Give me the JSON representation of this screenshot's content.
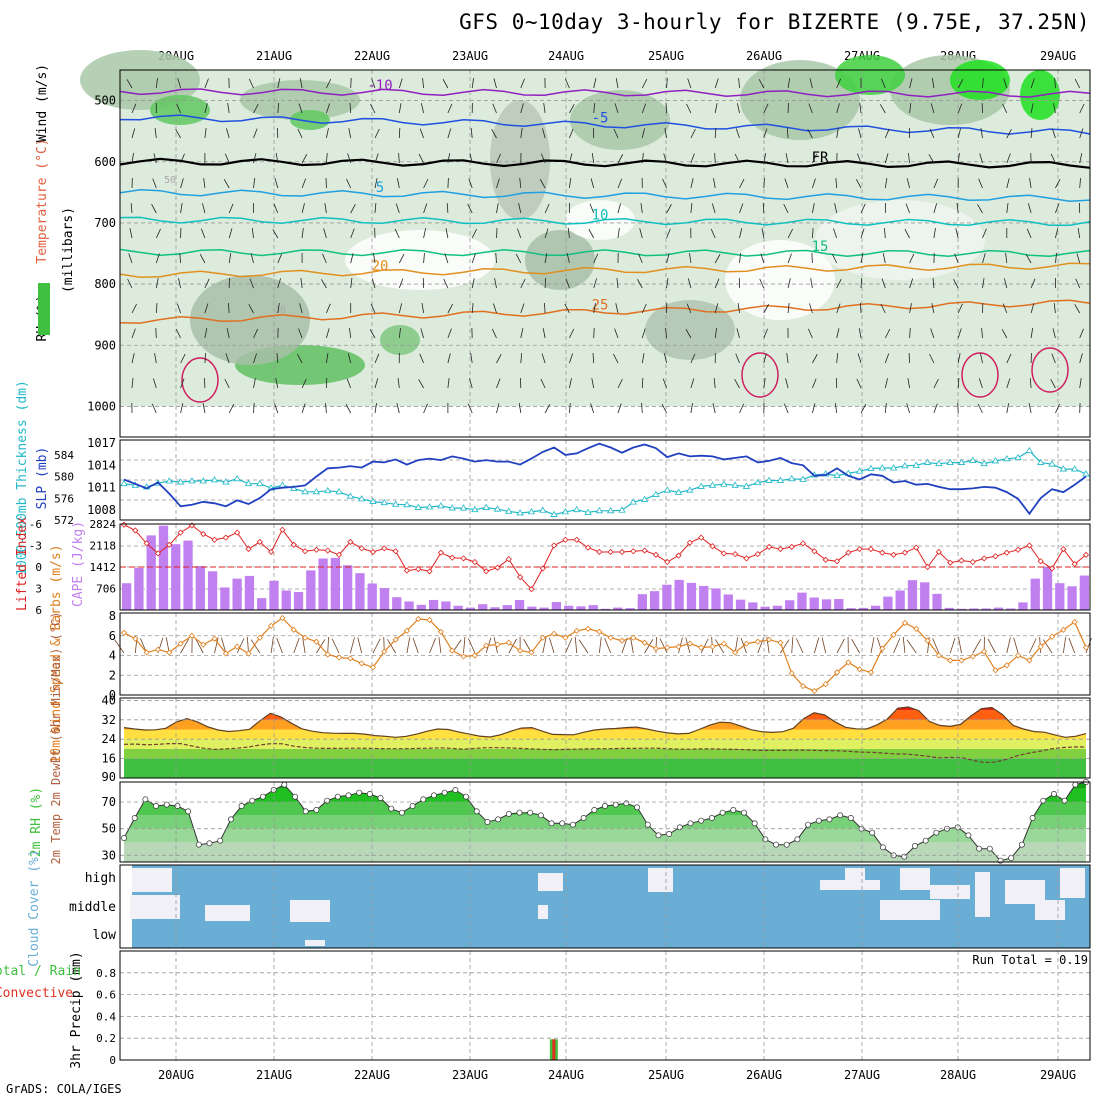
{
  "title": "GFS 0~10day 3-hourly for BIZERTE (9.75E, 37.25N)",
  "footer": "GrADS: COLA/IGES",
  "run_total": "Run Total = 0.19",
  "dates": [
    "20AUG",
    "21AUG",
    "22AUG",
    "23AUG",
    "24AUG",
    "25AUG",
    "26AUG",
    "27AUG",
    "28AUG",
    "29AUG"
  ],
  "colors": {
    "temp": "#e06040",
    "rh": "#40c040",
    "cape": "#c080f0",
    "lifted": "#e02020",
    "wind": "#e08020",
    "thickness": "#20b8c8",
    "slp": "#2040c0",
    "cloud": "#6aaed6",
    "dewpt": "#b06040",
    "precip_rain": "#40c040",
    "precip_conv": "#e03020"
  },
  "chart_data": [
    {
      "type": "contour",
      "panel": "upper-air",
      "ylabel": "(millibars)",
      "side_labels": [
        "RH (%)",
        "Temperature (°C)",
        "Wind (m/s)"
      ],
      "yticks": [
        500,
        600,
        700,
        800,
        900,
        1000
      ],
      "ylim": [
        1050,
        450
      ],
      "isotherms": [
        {
          "label": "-10",
          "level_start": 485,
          "level_end": 490
        },
        {
          "label": "-5",
          "level_start": 527,
          "level_end": 552
        },
        {
          "label": "FR",
          "level_start": 600,
          "level_end": 605
        },
        {
          "label": "5",
          "level_start": 650,
          "level_end": 660
        },
        {
          "label": "10",
          "level_start": 695,
          "level_end": 700
        },
        {
          "label": "15",
          "level_start": 748,
          "level_end": 750
        },
        {
          "label": "20",
          "level_start": 785,
          "level_end": 770
        },
        {
          "label": "25",
          "level_start": 860,
          "level_end": 830
        }
      ],
      "rh_labels": [
        "50",
        "30"
      ]
    },
    {
      "type": "line",
      "panel": "thickness-slp",
      "ylabel_left": "1000-500mb Thickness (dm)",
      "ylabel_right": "SLP (mb)",
      "thickness_ticks": [
        572,
        576,
        580,
        584
      ],
      "slp_ticks": [
        1008,
        1011,
        1014,
        1017
      ],
      "series": [
        {
          "name": "SLP",
          "values": [
            1012.1,
            1011.5,
            1010.9,
            1011.7,
            1010.2,
            1008.5,
            1008.7,
            1009.1,
            1008.9,
            1008.5,
            1009.3,
            1008.8,
            1009.6,
            1010.8,
            1011.0,
            1011.1,
            1011.3,
            1012.5,
            1013.6,
            1013.7,
            1013.9,
            1013.7,
            1014.5,
            1014.4,
            1014.8,
            1014.1,
            1014.7,
            1014.9,
            1014.7,
            1015.2,
            1014.9,
            1014.5,
            1014.7,
            1014.5,
            1014.5,
            1014.1,
            1014.9,
            1015.8,
            1016.4,
            1015.4,
            1015.6,
            1016.3,
            1016.9,
            1016.4,
            1015.7,
            1016.4,
            1016.8,
            1016.3,
            1015.1,
            1015.6,
            1015.2,
            1015.3,
            1015.2,
            1014.8,
            1015.0,
            1015.2,
            1014.4,
            1014.6,
            1015.0,
            1014.3,
            1014.0,
            1012.6,
            1012.7,
            1013.6,
            1012.6,
            1012.1,
            1012.8,
            1012.6,
            1011.7,
            1011.9,
            1011.4,
            1011.5,
            1011.1,
            1010.8,
            1010.8,
            1010.9,
            1011.1,
            1011.0,
            1010.4,
            1009.5,
            1007.5,
            1009.6,
            1010.8,
            1010.4,
            1011.4,
            1012.5
          ]
        },
        {
          "name": "Thickness",
          "values": [
            578.7,
            578.4,
            578.1,
            578.8,
            579.2,
            579.0,
            579.2,
            579.2,
            579.4,
            579.0,
            579.6,
            578.7,
            578.7,
            577.9,
            578.4,
            577.8,
            577.2,
            577.2,
            577.4,
            577.2,
            576.4,
            575.9,
            575.4,
            575.2,
            574.9,
            574.8,
            574.3,
            574.4,
            574.6,
            574.2,
            574.2,
            573.9,
            574.3,
            574.0,
            573.6,
            573.3,
            573.5,
            573.8,
            573.0,
            573.5,
            573.9,
            573.4,
            573.7,
            573.7,
            573.8,
            575.3,
            575.8,
            576.7,
            577.5,
            577.1,
            577.5,
            578.2,
            578.4,
            578.6,
            578.4,
            578.2,
            578.9,
            579.3,
            579.3,
            579.6,
            579.5,
            580.3,
            580.5,
            580.2,
            580.6,
            581.0,
            581.5,
            581.6,
            581.6,
            582.0,
            582.1,
            582.6,
            582.4,
            582.6,
            582.6,
            583.0,
            582.4,
            582.9,
            583.3,
            583.5,
            584.8,
            582.6,
            582.3,
            581.4,
            581.4,
            580.5
          ]
        }
      ]
    },
    {
      "type": "bar+line",
      "panel": "cape-lifted",
      "ylabel_left": "Lifted Index",
      "ylabel_right": "CAPE (J/kg)",
      "cape_ticks": [
        706,
        1412,
        2118,
        2824
      ],
      "li_ticks": [
        -6,
        -3,
        0,
        3,
        6
      ],
      "series": [
        {
          "name": "CAPE",
          "values": [
            880,
            1380,
            2450,
            2770,
            2160,
            2280,
            1440,
            1270,
            740,
            1030,
            1120,
            390,
            960,
            640,
            590,
            1300,
            1690,
            1710,
            1470,
            1210,
            870,
            720,
            420,
            280,
            170,
            330,
            280,
            140,
            80,
            190,
            90,
            160,
            330,
            110,
            80,
            260,
            140,
            120,
            160,
            40,
            80,
            60,
            520,
            620,
            830,
            990,
            890,
            790,
            710,
            510,
            340,
            250,
            110,
            140,
            320,
            570,
            410,
            350,
            360,
            60,
            70,
            140,
            440,
            640,
            980,
            910,
            530,
            70,
            40,
            50,
            50,
            80,
            50,
            250,
            1030,
            1410,
            880,
            780,
            1130
          ]
        },
        {
          "name": "Lifted Index",
          "values": [
            -5.9,
            -5.1,
            -3.3,
            -1.9,
            -3.1,
            -4.8,
            -5.8,
            -4.6,
            -3.8,
            -4.1,
            -4.8,
            -2.5,
            -3.5,
            -2.1,
            -5.2,
            -3.1,
            -2.2,
            -2.4,
            -2.3,
            -1.7,
            -3.5,
            -2.6,
            -2.1,
            -2.6,
            -2.2,
            0.5,
            0.3,
            0.6,
            -2.0,
            -1.3,
            -1.2,
            -0.7,
            0.6,
            0.1,
            -1.1,
            1.4,
            3.1,
            0.2,
            -3.0,
            -3.8,
            -3.8,
            -2.7,
            -2.1,
            -2.1,
            -2.1,
            -2.2,
            -2.3,
            -1.7,
            -0.7,
            -1.6,
            -3.4,
            -4.1,
            -2.9,
            -1.9,
            -1.8,
            -1.2,
            -1.8,
            -2.8,
            -2.5,
            -2.8,
            -3.3,
            -2.2,
            -1.0,
            -0.8,
            -2.0,
            -2.5,
            -2.5,
            -2.0,
            -1.7,
            -2.0,
            -2.7,
            0.0,
            -2.1,
            -0.6,
            -0.9,
            -0.7,
            -1.2,
            -1.5,
            -2.0,
            -2.4,
            -3.0,
            -0.8,
            0.2,
            -2.5,
            -0.4,
            -1.7
          ]
        }
      ]
    },
    {
      "type": "line",
      "panel": "wind-10m",
      "ylabel": "10m Wind Speed & Barbs (m/s)",
      "yticks": [
        0,
        2,
        4,
        6,
        8
      ],
      "ylim": [
        0,
        8
      ],
      "series": [
        {
          "name": "10m Wind Speed",
          "values": [
            6.3,
            5.7,
            4.3,
            4.6,
            4.3,
            5.2,
            6.0,
            5.1,
            5.7,
            4.2,
            4.9,
            4.2,
            5.8,
            7.0,
            7.8,
            6.6,
            5.8,
            5.4,
            4.1,
            3.8,
            3.7,
            3.2,
            2.8,
            4.4,
            5.6,
            6.5,
            7.7,
            7.6,
            6.4,
            4.5,
            3.9,
            4.0,
            5.0,
            5.1,
            5.3,
            4.5,
            4.3,
            5.8,
            6.2,
            5.8,
            6.5,
            6.7,
            6.4,
            5.8,
            5.5,
            5.8,
            5.3,
            4.7,
            4.8,
            4.9,
            5.2,
            4.8,
            4.9,
            5.2,
            4.3,
            5.2,
            5.4,
            5.6,
            5.3,
            2.2,
            0.9,
            0.4,
            1.1,
            2.3,
            3.3,
            2.6,
            2.3,
            4.7,
            6.1,
            7.3,
            6.7,
            5.5,
            4.0,
            3.5,
            3.5,
            3.9,
            4.4,
            2.5,
            3.0,
            4.0,
            3.5,
            4.9,
            5.9,
            6.6,
            7.4,
            4.8
          ]
        }
      ]
    },
    {
      "type": "area+line",
      "panel": "temp-dewpt",
      "ylabel": "2m Temp 2m DewPt (6hr Min/Max) (°C)",
      "yticks": [
        16,
        24,
        32,
        40
      ],
      "ylim": [
        8,
        41
      ],
      "bottom_label": "90",
      "series": [
        {
          "name": "2m Temp",
          "values": [
            28.8,
            28.2,
            27.8,
            27.9,
            28.5,
            31.1,
            32.5,
            31.2,
            29.1,
            27.8,
            27.2,
            27.5,
            28.1,
            31.6,
            34.7,
            33.2,
            30.6,
            28.3,
            27.3,
            26.7,
            26.5,
            26.4,
            26.4,
            26.1,
            25.5,
            25.2,
            24.8,
            25.2,
            26.1,
            27.3,
            28.2,
            28.0,
            27.0,
            26.1,
            25.3,
            24.9,
            25.8,
            27.3,
            28.6,
            28.8,
            27.3,
            26.0,
            25.9,
            25.8,
            26.9,
            27.8,
            28.2,
            28.4,
            28.8,
            29.0,
            28.2,
            27.3,
            26.6,
            26.2,
            26.4,
            28.0,
            29.8,
            31.0,
            30.8,
            29.4,
            27.9,
            27.1,
            26.8,
            27.1,
            28.5,
            32.5,
            34.9,
            34.0,
            31.2,
            28.9,
            28.3,
            28.2,
            29.9,
            32.3,
            36.8,
            37.3,
            35.8,
            31.4,
            29.7,
            29.3,
            30.1,
            33.6,
            36.6,
            37.1,
            34.2,
            29.8,
            28.2,
            27.2,
            26.9,
            25.8,
            24.8,
            25.2,
            26.3
          ]
        },
        {
          "name": "2m DewPt",
          "values": [
            21.9,
            22.0,
            21.7,
            21.9,
            22.2,
            22.2,
            21.2,
            20.3,
            19.8,
            20.0,
            20.3,
            20.8,
            21.6,
            22.2,
            22.1,
            21.1,
            20.6,
            20.3,
            20.2,
            20.2,
            20.3,
            20.3,
            20.2,
            20.1,
            20.1,
            20.1,
            20.2,
            20.3,
            20.4,
            20.2,
            19.9,
            20.2,
            20.5,
            20.5,
            20.4,
            20.2,
            20.0,
            19.8,
            19.7,
            19.8,
            19.9,
            20.0,
            20.1,
            20.1,
            20.2,
            20.2,
            20.3,
            20.3,
            20.1,
            19.9,
            19.9,
            20.0,
            20.0,
            19.9,
            19.8,
            19.7,
            19.4,
            19.4,
            19.4,
            19.5,
            19.5,
            19.4,
            19.3,
            19.2,
            19.0,
            18.7,
            18.6,
            18.3,
            18.0,
            17.9,
            17.5,
            17.0,
            16.3,
            16.5,
            16.4,
            15.3,
            14.4,
            14.6,
            15.7,
            17.3,
            18.3,
            19.1,
            20.1,
            20.6,
            20.8,
            20.8
          ]
        }
      ]
    },
    {
      "type": "area",
      "panel": "rh-2m",
      "ylabel": "2m RH (%)",
      "yticks": [
        30,
        50,
        70
      ],
      "ylim": [
        25,
        85
      ],
      "series": [
        {
          "name": "2m RH",
          "values": [
            43,
            58,
            72,
            67,
            68,
            67,
            63,
            38,
            39,
            41,
            57,
            67,
            71,
            74,
            79,
            83,
            74,
            63,
            64,
            71,
            74,
            75,
            77,
            76,
            73,
            65,
            62,
            67,
            72,
            75,
            77,
            79,
            74,
            63,
            55,
            57,
            61,
            62,
            62,
            60,
            54,
            54,
            53,
            58,
            64,
            67,
            68,
            69,
            66,
            53,
            45,
            46,
            51,
            54,
            56,
            58,
            62,
            64,
            62,
            54,
            42,
            38,
            38,
            42,
            53,
            56,
            57,
            60,
            58,
            50,
            47,
            36,
            30,
            29,
            37,
            41,
            47,
            50,
            51,
            45,
            35,
            35,
            26,
            28,
            38,
            58,
            71,
            76,
            71,
            83,
            85
          ]
        }
      ]
    },
    {
      "type": "step",
      "panel": "cloud-cover",
      "ylabel": "Cloud Cover (%)",
      "levels": [
        "high",
        "middle",
        "low"
      ]
    },
    {
      "type": "bar",
      "panel": "precip",
      "ylabel": "3hr Precip (mm)",
      "side_labels": [
        "Total / Rain",
        "Convective"
      ],
      "yticks": [
        0,
        0.2,
        0.4,
        0.6,
        0.8
      ],
      "ylim": [
        0,
        1
      ],
      "series": [
        {
          "name": "Total / Rain",
          "index": 42,
          "value": 0.19
        },
        {
          "name": "Convective",
          "index": 42,
          "value": 0.19
        }
      ]
    }
  ]
}
